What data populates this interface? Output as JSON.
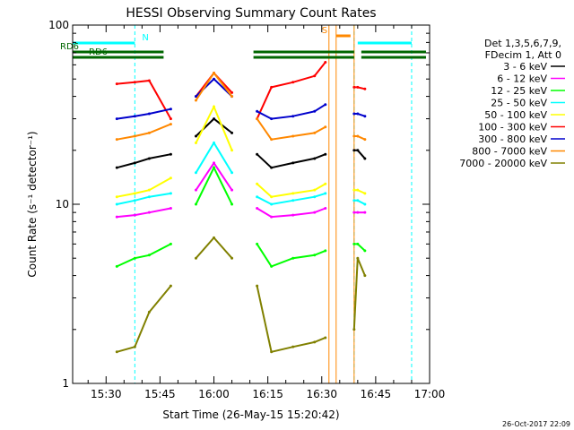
{
  "chart_data": {
    "type": "line",
    "title": "HESSI Observing Summary Count Rates",
    "xlabel": "Start Time (26-May-15 15:20:42)",
    "ylabel": "Count Rate (s⁻¹ detector⁻¹)",
    "y_scale": "log",
    "ylim": [
      1,
      100
    ],
    "xlim": [
      "15:20:42",
      "17:00:00"
    ],
    "x_ticks": [
      "15:30",
      "15:45",
      "16:00",
      "16:15",
      "16:30",
      "16:45",
      "17:00"
    ],
    "y_ticks": [
      "1",
      "10",
      "100"
    ],
    "legend_header": [
      "Det 1,3,5,6,7,9,",
      "FDecim 1, Att 0"
    ],
    "series": [
      {
        "name": "3 - 6 keV",
        "color": "#000000",
        "x": [
          "15:33",
          "15:38",
          "15:42",
          "15:48",
          "15:55",
          "16:00",
          "16:05",
          "16:12",
          "16:16",
          "16:22",
          "16:28",
          "16:31",
          "16:39",
          "16:40",
          "16:42"
        ],
        "values": [
          16,
          17,
          18,
          19,
          24,
          30,
          25,
          19,
          16,
          17,
          18,
          19,
          20,
          20,
          18
        ]
      },
      {
        "name": "6 - 12 keV",
        "color": "#ff00ff",
        "x": [
          "15:33",
          "15:38",
          "15:42",
          "15:48",
          "15:55",
          "16:00",
          "16:05",
          "16:12",
          "16:16",
          "16:22",
          "16:28",
          "16:31",
          "16:39",
          "16:40",
          "16:42"
        ],
        "values": [
          8.5,
          8.7,
          9,
          9.5,
          12,
          17,
          12,
          9.5,
          8.5,
          8.7,
          9,
          9.5,
          9,
          9,
          9
        ]
      },
      {
        "name": "12 - 25 keV",
        "color": "#00ff00",
        "x": [
          "15:33",
          "15:38",
          "15:42",
          "15:48",
          "15:55",
          "16:00",
          "16:05",
          "16:12",
          "16:16",
          "16:22",
          "16:28",
          "16:31",
          "16:39",
          "16:40",
          "16:42"
        ],
        "values": [
          4.5,
          5,
          5.2,
          6,
          10,
          16,
          10,
          6,
          4.5,
          5,
          5.2,
          5.5,
          6,
          6,
          5.5
        ]
      },
      {
        "name": "25 - 50 keV",
        "color": "#00ffff",
        "x": [
          "15:33",
          "15:38",
          "15:42",
          "15:48",
          "15:55",
          "16:00",
          "16:05",
          "16:12",
          "16:16",
          "16:22",
          "16:28",
          "16:31",
          "16:39",
          "16:40",
          "16:42"
        ],
        "values": [
          10,
          10.5,
          11,
          11.5,
          15,
          22,
          15,
          11,
          10,
          10.5,
          11,
          11.5,
          10.5,
          10.5,
          10
        ]
      },
      {
        "name": "50 - 100 keV",
        "color": "#ffff00",
        "x": [
          "15:33",
          "15:38",
          "15:42",
          "15:48",
          "15:55",
          "16:00",
          "16:05",
          "16:12",
          "16:16",
          "16:22",
          "16:28",
          "16:31",
          "16:39",
          "16:40",
          "16:42"
        ],
        "values": [
          11,
          11.5,
          12,
          14,
          22,
          35,
          20,
          13,
          11,
          11.5,
          12,
          13,
          12,
          12,
          11.5
        ]
      },
      {
        "name": "100 - 300 keV",
        "color": "#ff0000",
        "x": [
          "15:33",
          "15:38",
          "15:42",
          "15:48",
          "15:55",
          "16:00",
          "16:05",
          "16:12",
          "16:16",
          "16:22",
          "16:28",
          "16:31",
          "16:39",
          "16:40",
          "16:42"
        ],
        "values": [
          47,
          48,
          49,
          30,
          40,
          54,
          42,
          30,
          45,
          48,
          52,
          62,
          45,
          45,
          44
        ]
      },
      {
        "name": "300 - 800 keV",
        "color": "#0000cc",
        "x": [
          "15:33",
          "15:38",
          "15:42",
          "15:48",
          "15:55",
          "16:00",
          "16:05",
          "16:12",
          "16:16",
          "16:22",
          "16:28",
          "16:31",
          "16:39",
          "16:40",
          "16:42"
        ],
        "values": [
          30,
          31,
          32,
          34,
          40,
          50,
          40,
          33,
          30,
          31,
          33,
          36,
          32,
          32,
          31
        ]
      },
      {
        "name": "800 - 7000 keV",
        "color": "#ff8800",
        "x": [
          "15:33",
          "15:38",
          "15:42",
          "15:48",
          "15:55",
          "16:00",
          "16:05",
          "16:12",
          "16:16",
          "16:22",
          "16:28",
          "16:31",
          "16:39",
          "16:40",
          "16:42"
        ],
        "values": [
          23,
          24,
          25,
          28,
          38,
          54,
          40,
          30,
          23,
          24,
          25,
          27,
          24,
          24,
          23
        ]
      },
      {
        "name": "7000 - 20000 keV",
        "color": "#808000",
        "x": [
          "15:33",
          "15:38",
          "15:42",
          "15:48",
          "15:55",
          "16:00",
          "16:05",
          "16:12",
          "16:16",
          "16:22",
          "16:28",
          "16:31",
          "16:39",
          "16:40",
          "16:42"
        ],
        "values": [
          1.5,
          1.6,
          2.5,
          3.5,
          5,
          6.5,
          5,
          3.5,
          1.5,
          1.6,
          1.7,
          1.8,
          2,
          5,
          4
        ]
      }
    ],
    "flag_bars": [
      {
        "label": "N",
        "color": "#00ffff",
        "segments": [
          [
            "15:20:42",
            "15:38"
          ],
          [
            "16:40",
            "16:55"
          ]
        ]
      },
      {
        "label": "RD6",
        "color": "#006600",
        "segments": [
          [
            "15:20:42",
            "15:46"
          ],
          [
            "16:11",
            "16:39"
          ],
          [
            "16:41",
            "16:59"
          ]
        ]
      },
      {
        "label": "RD6",
        "color": "#006600",
        "segments": [
          [
            "15:20:42",
            "15:46"
          ],
          [
            "16:11",
            "16:39"
          ],
          [
            "16:41",
            "16:59"
          ]
        ]
      },
      {
        "label": "S",
        "color": "#ff8800",
        "segments": [
          [
            "16:34",
            "16:38"
          ]
        ]
      }
    ],
    "vlines": [
      {
        "time": "15:38",
        "color": "#00ffff",
        "style": "dashed"
      },
      {
        "time": "16:39",
        "color": "#00ffff",
        "style": "dashed"
      },
      {
        "time": "16:55",
        "color": "#00ffff",
        "style": "dashed"
      },
      {
        "time": "16:32",
        "color": "#ff8800",
        "style": "solid"
      },
      {
        "time": "16:34",
        "color": "#ff8800",
        "style": "solid"
      },
      {
        "time": "16:39",
        "color": "#ff8800",
        "style": "solid"
      }
    ],
    "grid": false,
    "legend_position": "right"
  },
  "footer": {
    "timestamp": "26-Oct-2017 22:09"
  }
}
